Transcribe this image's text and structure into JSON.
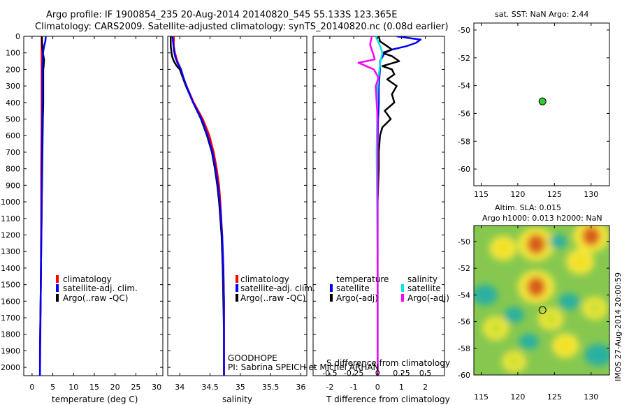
{
  "header": {
    "line1": "Argo profile: IF 1900854_235 20-Aug-2014 20140820_545 55.133S 123.365E",
    "line2": "Climatology: CARS2009. Satellite-adjusted climatology: synTS_20140820.nc (0.08d earlier)"
  },
  "colors": {
    "climatology": "#ff0000",
    "satellite": "#0000ff",
    "argo": "#000000",
    "satellite_diff_S": "#00e5e5",
    "argo_diff_S": "#ff00ff",
    "float_marker": "#33cc33"
  },
  "depth_axis": {
    "ylim": [
      0,
      2050
    ],
    "ticks": [
      0,
      100,
      200,
      300,
      400,
      500,
      600,
      700,
      800,
      900,
      1000,
      1100,
      1200,
      1300,
      1400,
      1500,
      1600,
      1700,
      1800,
      1900,
      2000
    ]
  },
  "chart_data": [
    {
      "id": "temperature",
      "type": "line",
      "xlabel": "temperature (deg C)",
      "xlim": [
        -2,
        31.5
      ],
      "xticks": [
        0,
        5,
        10,
        15,
        20,
        25,
        30
      ],
      "xtick_labels": [
        "0",
        "5",
        "10",
        "15",
        "20",
        "25",
        "30"
      ],
      "legend": {
        "items": [
          "climatology",
          "satellite-adj. clim.",
          "Argo(..raw -QC)"
        ]
      },
      "series": [
        {
          "name": "climatology",
          "color": "#ff0000",
          "depth": [
            0,
            100,
            150,
            300,
            500,
            800,
            1100,
            1500,
            1800,
            2050
          ],
          "values": [
            2.3,
            2.3,
            2.3,
            2.3,
            2.3,
            2.2,
            2.2,
            2.1,
            2.0,
            1.9
          ]
        },
        {
          "name": "Argo",
          "color": "#000000",
          "depth": [
            0,
            20,
            60,
            100,
            140,
            180,
            200,
            250,
            300,
            400,
            500,
            700,
            900,
            1100,
            1300,
            1500,
            1700,
            1900,
            2050
          ],
          "values": [
            2.4,
            2.4,
            2.45,
            2.6,
            2.9,
            2.8,
            2.7,
            2.7,
            2.7,
            2.7,
            2.6,
            2.5,
            2.4,
            2.3,
            2.2,
            2.1,
            2.0,
            1.9,
            1.9
          ]
        },
        {
          "name": "satellite",
          "color": "#0000ff",
          "depth": [
            0,
            30,
            60,
            90,
            120,
            150,
            200,
            250,
            300,
            400,
            500,
            700,
            900,
            1100,
            1300,
            1500,
            1700,
            1900,
            2050
          ],
          "values": [
            3.3,
            3.2,
            2.9,
            2.7,
            2.6,
            2.55,
            2.5,
            2.5,
            2.5,
            2.5,
            2.45,
            2.4,
            2.35,
            2.3,
            2.2,
            2.1,
            2.0,
            1.9,
            1.9
          ]
        }
      ]
    },
    {
      "id": "salinity",
      "type": "line",
      "xlabel": "salinity",
      "xlim": [
        33.8,
        36.1
      ],
      "xticks": [
        34,
        34.5,
        35,
        35.5,
        36
      ],
      "xtick_labels": [
        "34",
        "34.5",
        "35",
        "35.5",
        "36"
      ],
      "legend": {
        "items": [
          "climatology",
          "satellite-adj. clim.",
          "Argo(..raw -QC)"
        ]
      },
      "annotation": [
        "GOODHOPE",
        "PI: Sabrina SPEICH et Michel ARHAN"
      ],
      "series": [
        {
          "name": "Argo",
          "color": "#000000",
          "depth": [
            0,
            60,
            120,
            150,
            180,
            200,
            250,
            300,
            400,
            500,
            600,
            700,
            800,
            900,
            1000,
            1200,
            1400,
            1600,
            1800,
            2050
          ],
          "values": [
            33.85,
            33.85,
            33.87,
            33.9,
            33.95,
            34.0,
            34.05,
            34.1,
            34.22,
            34.35,
            34.45,
            34.53,
            34.58,
            34.62,
            34.65,
            34.69,
            34.71,
            34.72,
            34.73,
            34.73
          ]
        },
        {
          "name": "climatology",
          "color": "#ff0000",
          "depth": [
            0,
            60,
            100,
            150,
            200,
            250,
            300,
            400,
            500,
            600,
            700,
            800,
            900,
            1000,
            1200,
            1400,
            1600,
            1800,
            2050
          ],
          "values": [
            33.9,
            33.9,
            33.92,
            33.96,
            34.02,
            34.06,
            34.11,
            34.23,
            34.38,
            34.49,
            34.56,
            34.61,
            34.65,
            34.67,
            34.7,
            34.72,
            34.73,
            34.73,
            34.73
          ]
        },
        {
          "name": "satellite",
          "color": "#0000ff",
          "depth": [
            0,
            40,
            80,
            120,
            160,
            200,
            250,
            300,
            400,
            500,
            600,
            700,
            800,
            900,
            1000,
            1200,
            1400,
            1600,
            1800,
            2050
          ],
          "values": [
            33.88,
            33.89,
            33.9,
            33.92,
            33.96,
            34.02,
            34.06,
            34.11,
            34.22,
            34.36,
            34.46,
            34.54,
            34.59,
            34.63,
            34.66,
            34.7,
            34.72,
            34.73,
            34.73,
            34.73
          ]
        }
      ]
    },
    {
      "id": "differences",
      "type": "line",
      "xlabel": "T difference from climatology",
      "xlabel_top": "S difference from climatology",
      "xlim": [
        -2.7,
        2.8
      ],
      "xticks": [
        -2,
        -1,
        0,
        1,
        2
      ],
      "xtick_labels": [
        "-2",
        "-1",
        "0",
        "1",
        "2"
      ],
      "xticks_S": [
        -0.5,
        -0.25,
        0,
        0.25,
        0.5
      ],
      "xtick_labels_S": [
        "-0.5",
        "-0.25",
        "0",
        "0.25",
        "0.5"
      ],
      "legend": {
        "left_title": "temperature",
        "right_title": "salinity",
        "left_items": [
          "satellite",
          "Argo(-adj)"
        ],
        "right_items": [
          "satellite",
          "Argo(-adj)"
        ]
      },
      "series": [
        {
          "name": "T satellite",
          "color": "#0000ff",
          "depth": [
            0,
            20,
            40,
            60,
            80,
            100,
            150,
            200,
            300,
            400,
            500,
            700,
            1000,
            1500,
            2050
          ],
          "values": [
            0.8,
            1.8,
            1.6,
            1.2,
            0.6,
            0.3,
            0.1,
            0.1,
            0.05,
            0.05,
            0.02,
            0.0,
            0.0,
            0.0,
            0.0
          ]
        },
        {
          "name": "T Argo",
          "color": "#000000",
          "depth": [
            0,
            30,
            60,
            80,
            100,
            120,
            150,
            180,
            200,
            230,
            260,
            300,
            350,
            400,
            450,
            500,
            550,
            600,
            700,
            800,
            1000,
            1500,
            2050
          ],
          "values": [
            0.05,
            0.1,
            0.4,
            0.6,
            0.2,
            0.6,
            0.9,
            0.2,
            0.6,
            0.7,
            0.4,
            0.8,
            0.6,
            0.7,
            0.3,
            0.55,
            0.2,
            0.1,
            0.05,
            0.05,
            0.0,
            0.0,
            0.0
          ]
        },
        {
          "name": "S satellite",
          "color": "#00e5e5",
          "depth": [
            0,
            50,
            100,
            150,
            200,
            300,
            500,
            700,
            1000,
            1500,
            2050
          ],
          "values": [
            -0.02,
            0.02,
            0.05,
            0.03,
            0.02,
            0.0,
            -0.005,
            -0.01,
            -0.005,
            0.0,
            0.0
          ]
        },
        {
          "name": "S Argo",
          "color": "#ff00ff",
          "depth": [
            0,
            50,
            100,
            140,
            160,
            180,
            200,
            250,
            300,
            400,
            500,
            700,
            1000,
            1500,
            2050
          ],
          "values": [
            -0.06,
            -0.08,
            -0.05,
            -0.03,
            -0.2,
            -0.12,
            -0.04,
            0.01,
            -0.02,
            -0.01,
            0.0,
            0.0,
            0.0,
            0.0,
            0.0
          ]
        }
      ]
    },
    {
      "id": "sst_map",
      "type": "scatter",
      "title": "sat. SST: NaN Argo: 2.44",
      "xlim": [
        114,
        132.5
      ],
      "ylim": [
        -61.2,
        -49.5
      ],
      "xticks": [
        115,
        120,
        125,
        130
      ],
      "yticks": [
        -50,
        -52,
        -54,
        -56,
        -58,
        -60
      ],
      "xtick_labels": [
        "115",
        "120",
        "125",
        "130"
      ],
      "ytick_labels": [
        "-50",
        "-52",
        "-54",
        "-56",
        "-58",
        "-60"
      ],
      "points": [
        {
          "x": 123.365,
          "y": -55.133
        }
      ]
    },
    {
      "id": "sla_map",
      "type": "heatmap",
      "title_line1": "Altim. SLA: 0.015",
      "title_line2": "Argo h1000: 0.013 h2000: NaN",
      "xlim": [
        114,
        132.5
      ],
      "ylim": [
        -60,
        -48.8
      ],
      "xticks": [
        115,
        120,
        125,
        130
      ],
      "yticks": [
        -50,
        -52,
        -54,
        -56,
        -58,
        -60
      ],
      "xtick_labels": [
        "115",
        "120",
        "125",
        "130"
      ],
      "ytick_labels": [
        "-50",
        "-52",
        "-54",
        "-56",
        "-58",
        "-60"
      ],
      "hotspots": [
        {
          "x": 122.5,
          "y": -50.2,
          "value": 1.0
        },
        {
          "x": 122.5,
          "y": -53.4,
          "value": 1.0
        },
        {
          "x": 130.0,
          "y": -49.6,
          "value": 0.95
        },
        {
          "x": 128.5,
          "y": -51.5,
          "value": 0.6
        },
        {
          "x": 118.0,
          "y": -50.5,
          "value": 0.55
        },
        {
          "x": 117.0,
          "y": -56.5,
          "value": 0.5
        },
        {
          "x": 126.5,
          "y": -57.8,
          "value": 0.55
        },
        {
          "x": 130.5,
          "y": -55.0,
          "value": 0.45
        },
        {
          "x": 119.5,
          "y": -59.0,
          "value": 0.4
        },
        {
          "x": 124.5,
          "y": -55.8,
          "value": 0.45
        }
      ],
      "lows": [
        {
          "x": 115.5,
          "y": -54.0,
          "value": -0.6
        },
        {
          "x": 131.0,
          "y": -58.5,
          "value": -0.7
        },
        {
          "x": 119.5,
          "y": -55.5,
          "value": -0.3
        },
        {
          "x": 127.0,
          "y": -54.5,
          "value": -0.35
        },
        {
          "x": 121.5,
          "y": -57.5,
          "value": -0.3
        },
        {
          "x": 125.5,
          "y": -50.0,
          "value": -0.2
        }
      ],
      "points": [
        {
          "x": 123.365,
          "y": -55.133
        }
      ],
      "side_label": "IMOS 27-Aug-2014 20:00:59"
    }
  ]
}
